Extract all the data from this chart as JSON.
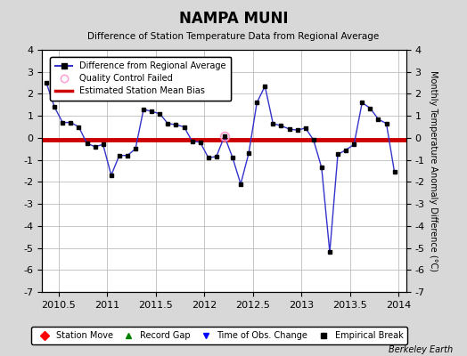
{
  "title": "NAMPA MUNI",
  "subtitle": "Difference of Station Temperature Data from Regional Average",
  "ylabel_right": "Monthly Temperature Anomaly Difference (°C)",
  "bias_value": -0.1,
  "xlim": [
    2010.33,
    2014.08
  ],
  "ylim": [
    -7,
    4
  ],
  "yticks": [
    -7,
    -6,
    -5,
    -4,
    -3,
    -2,
    -1,
    0,
    1,
    2,
    3,
    4
  ],
  "xticks": [
    2010.5,
    2011.0,
    2011.5,
    2012.0,
    2012.5,
    2013.0,
    2013.5,
    2014.0
  ],
  "xtick_labels": [
    "2010.5",
    "2011",
    "2011.5",
    "2012",
    "2012.5",
    "2013",
    "2013.5",
    "2014"
  ],
  "watermark": "Berkeley Earth",
  "line_color": "#3333cc",
  "bias_color": "#cc0000",
  "marker_color": "#000000",
  "qc_failed_x": [
    2012.208
  ],
  "qc_failed_y": [
    0.08
  ],
  "data_x": [
    2010.375,
    2010.458,
    2010.542,
    2010.625,
    2010.708,
    2010.792,
    2010.875,
    2010.958,
    2011.042,
    2011.125,
    2011.208,
    2011.292,
    2011.375,
    2011.458,
    2011.542,
    2011.625,
    2011.708,
    2011.792,
    2011.875,
    2011.958,
    2012.042,
    2012.125,
    2012.208,
    2012.292,
    2012.375,
    2012.458,
    2012.542,
    2012.625,
    2012.708,
    2012.792,
    2012.875,
    2012.958,
    2013.042,
    2013.125,
    2013.208,
    2013.292,
    2013.375,
    2013.458,
    2013.542,
    2013.625,
    2013.708,
    2013.792,
    2013.875,
    2013.958
  ],
  "data_y": [
    2.5,
    1.4,
    0.7,
    0.7,
    0.5,
    -0.25,
    -0.4,
    -0.3,
    -1.7,
    -0.8,
    -0.8,
    -0.5,
    1.3,
    1.2,
    1.1,
    0.65,
    0.6,
    0.5,
    -0.15,
    -0.2,
    -0.9,
    -0.85,
    0.08,
    -0.9,
    -2.1,
    -0.7,
    1.6,
    2.35,
    0.65,
    0.55,
    0.4,
    0.35,
    0.45,
    -0.1,
    -1.35,
    -5.2,
    -0.75,
    -0.55,
    -0.3,
    1.6,
    1.35,
    0.85,
    0.65,
    -1.55
  ],
  "background_color": "#d8d8d8",
  "plot_bg_color": "#ffffff",
  "grid_color": "#bbbbbb"
}
